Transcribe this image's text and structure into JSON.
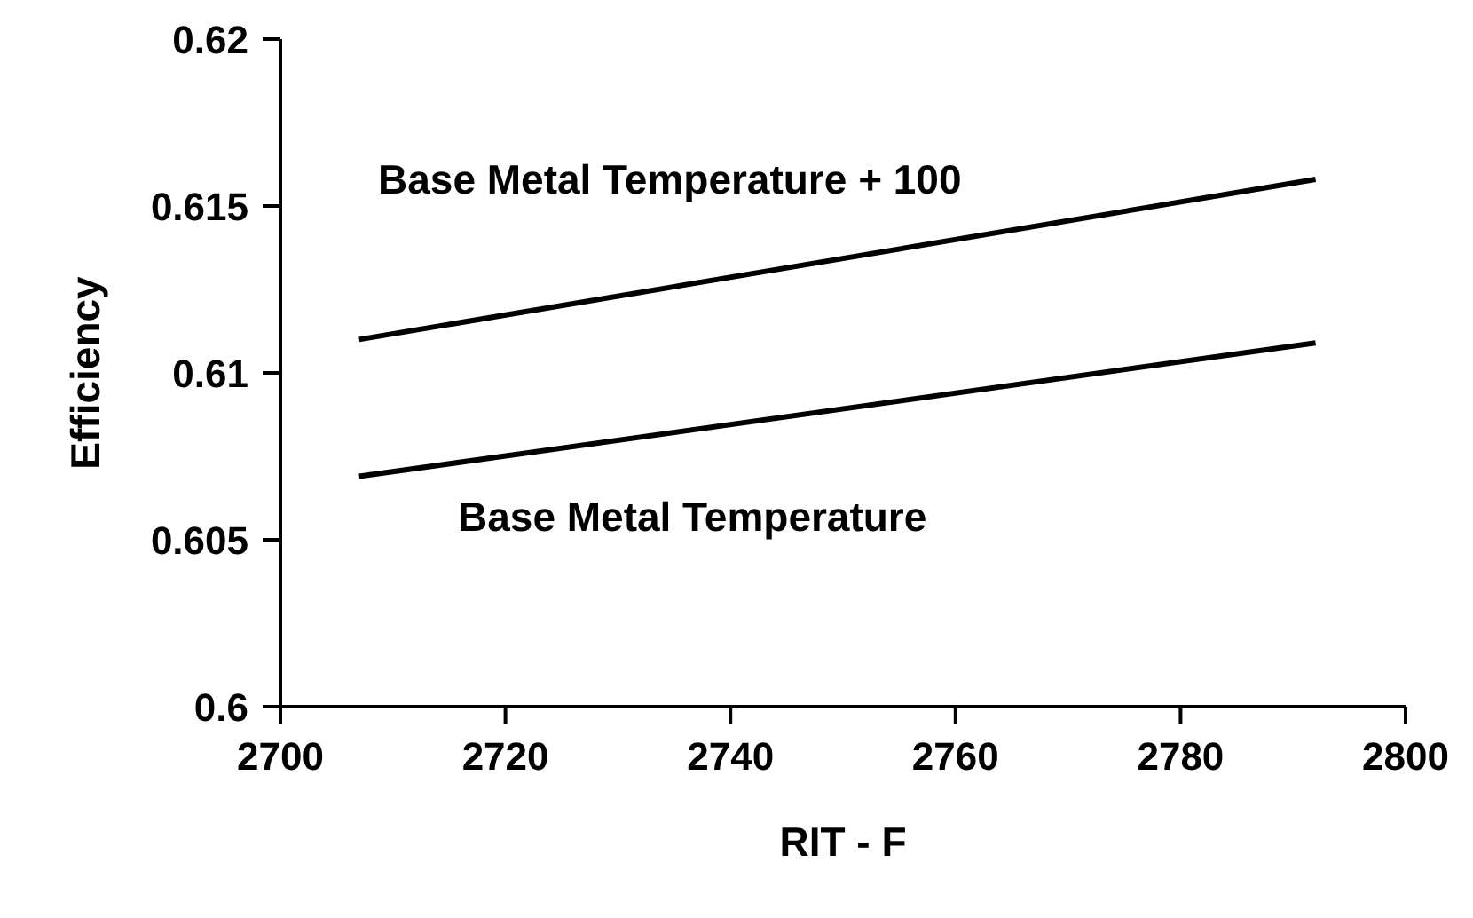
{
  "chart_data": {
    "type": "line",
    "xlabel": "RIT - F",
    "ylabel": "Efficiency",
    "xlim": [
      2700,
      2800
    ],
    "xticks": [
      2700,
      2720,
      2740,
      2760,
      2780,
      2800
    ],
    "ylim": [
      0.6,
      0.62
    ],
    "yticks": [
      {
        "value": 0.6,
        "label": "0.6"
      },
      {
        "value": 0.605,
        "label": "0.605"
      },
      {
        "value": 0.61,
        "label": "0.61"
      },
      {
        "value": 0.615,
        "label": "0.615"
      },
      {
        "value": 0.62,
        "label": "0.62"
      }
    ],
    "grid": false,
    "legend": false,
    "marker": "none",
    "line_style": "solid",
    "x": [
      2707,
      2792
    ],
    "series": [
      {
        "color": "#000000",
        "values": [
          0.611,
          0.6158
        ]
      },
      {
        "color": "#000000",
        "values": [
          0.6069,
          0.6109
        ]
      }
    ],
    "annotations": [
      "Base Metal Temperature + 100",
      "Base Metal Temperature"
    ]
  }
}
